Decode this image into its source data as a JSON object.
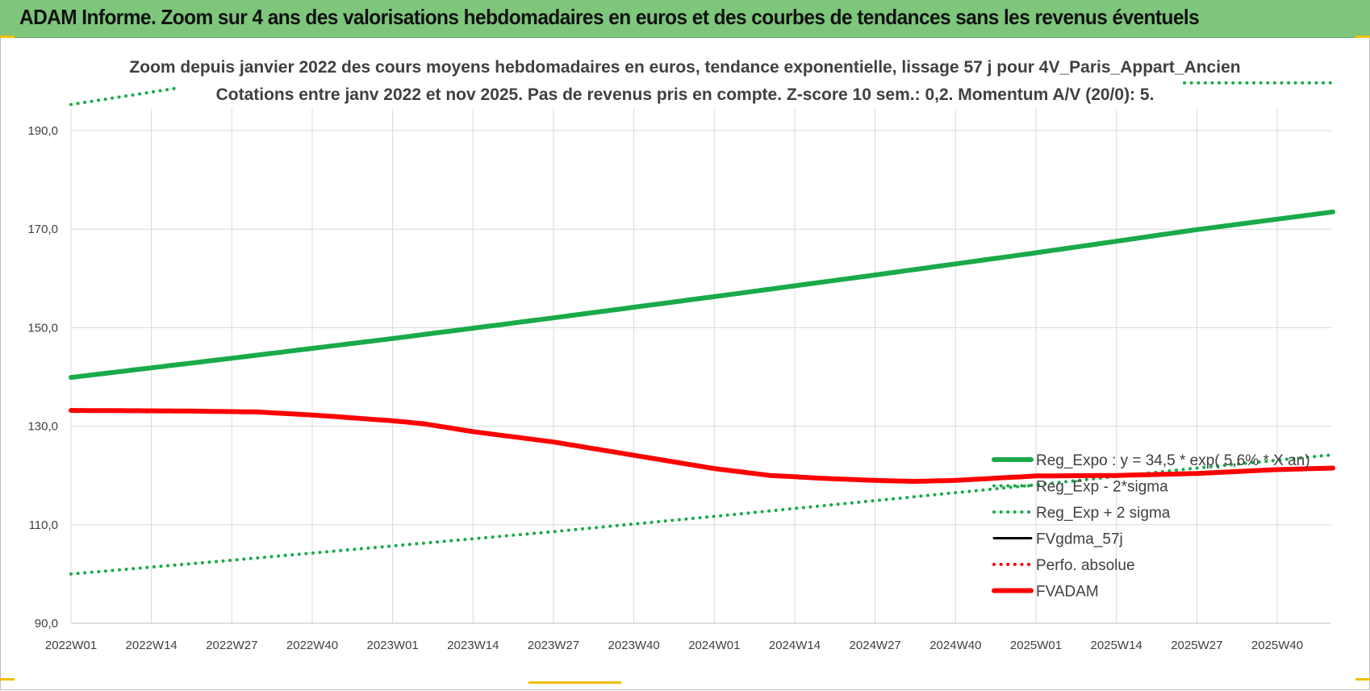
{
  "header": {
    "title": "ADAM Informe. Zoom sur 4 ans des valorisations hebdomadaires en euros et des courbes de tendances sans les revenus éventuels"
  },
  "colors": {
    "header_bg": "#7dc67b",
    "green": "#1aaa4a",
    "black": "#000000",
    "red": "#ff0000",
    "grid": "#d9d9d9",
    "accent": "#f0c000"
  },
  "chart_data": {
    "type": "line",
    "title_line1": "Zoom depuis janvier 2022 des cours moyens hebdomadaires en euros, tendance exponentielle, lissage 57 j pour 4V_Paris_Appart_Ancien",
    "title_line2": "Cotations entre janv 2022 et nov 2025. Pas de revenus pris en compte. Z-score 10 sem.: 0,2. Momentum A/V (20/0): 5.",
    "ylim": [
      90,
      200
    ],
    "yticks": [
      "90,0",
      "110,0",
      "130,0",
      "150,0",
      "170,0",
      "190,0"
    ],
    "ytick_values": [
      90,
      110,
      130,
      150,
      170,
      190
    ],
    "xticks": [
      "2022W01",
      "2022W14",
      "2022W27",
      "2022W40",
      "2023W01",
      "2023W14",
      "2023W27",
      "2023W40",
      "2024W01",
      "2024W14",
      "2024W27",
      "2024W40",
      "2025W01",
      "2025W14",
      "2025W27",
      "2025W40"
    ],
    "xtick_weeks": [
      0,
      13,
      26,
      39,
      52,
      65,
      78,
      91,
      104,
      117,
      130,
      143,
      156,
      169,
      182,
      195
    ],
    "x_range_weeks": [
      0,
      204
    ],
    "legend_position": "right-center",
    "series": [
      {
        "name": "Reg_Expo : y = 34,5 * exp( 5,6% * X  an)",
        "style": "solid-thick",
        "color": "#1aaa4a",
        "x": [
          0,
          26,
          52,
          78,
          104,
          130,
          156,
          182,
          204
        ],
        "values": [
          139.9,
          143.8,
          147.8,
          152.0,
          156.3,
          160.7,
          165.2,
          169.9,
          173.5
        ]
      },
      {
        "name": "Reg_Exp - 2*sigma",
        "style": "dotted",
        "color": "#1aaa4a",
        "x": [
          0,
          26,
          52,
          78,
          104,
          130,
          156,
          182,
          204
        ],
        "values": [
          100.0,
          102.8,
          105.7,
          108.6,
          111.7,
          114.9,
          118.1,
          121.5,
          124.2
        ]
      },
      {
        "name": "Reg_Exp + 2 sigma",
        "style": "dotted",
        "color": "#1aaa4a",
        "x": [
          0,
          17,
          180,
          204
        ],
        "values": [
          195.3,
          198.6,
          199.7,
          199.7
        ],
        "visible_x_ranges": [
          [
            0,
            17
          ],
          [
            180,
            204
          ]
        ]
      },
      {
        "name": "FVgdma_57j",
        "style": "solid",
        "color": "#000000",
        "x": [
          0,
          17,
          30,
          40,
          52,
          57,
          65,
          78,
          91,
          104,
          113,
          122,
          130,
          136,
          143,
          156,
          169,
          182,
          195,
          204
        ],
        "values": [
          133.2,
          133.1,
          132.9,
          132.3,
          131.0,
          130.3,
          128.8,
          126.7,
          124.3,
          121.6,
          120.2,
          119.5,
          119.0,
          118.9,
          118.9,
          119.7,
          120.2,
          120.5,
          121.2,
          121.5
        ]
      },
      {
        "name": "Perfo. absolue",
        "style": "dotted",
        "color": "#ff0000",
        "x": [
          0,
          17,
          30,
          40,
          52,
          57,
          65,
          78,
          91,
          104,
          113,
          122,
          130,
          136,
          143,
          156,
          169,
          182,
          195,
          204
        ],
        "values": [
          133.2,
          133.1,
          132.9,
          132.2,
          131.1,
          130.5,
          128.9,
          126.8,
          124.1,
          121.4,
          120.0,
          119.4,
          119.0,
          118.8,
          119.0,
          119.9,
          120.0,
          120.4,
          121.2,
          121.5
        ]
      },
      {
        "name": "FVADAM",
        "style": "solid-thick",
        "color": "#ff0000",
        "x": [
          0,
          17,
          30,
          40,
          52,
          57,
          65,
          78,
          91,
          104,
          113,
          122,
          130,
          136,
          143,
          156,
          169,
          182,
          195,
          204
        ],
        "values": [
          133.2,
          133.1,
          132.9,
          132.2,
          131.1,
          130.5,
          128.9,
          126.8,
          124.1,
          121.4,
          120.0,
          119.4,
          119.0,
          118.8,
          119.0,
          119.9,
          120.0,
          120.4,
          121.2,
          121.5
        ]
      }
    ]
  }
}
